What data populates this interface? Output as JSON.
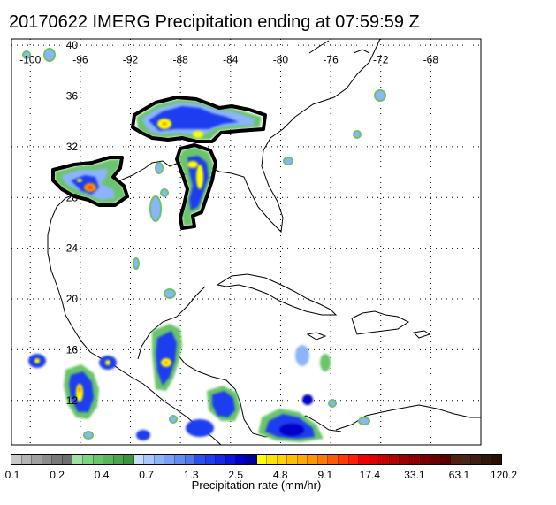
{
  "title": "20170622 IMERG Precipitation ending at 07:59:59 Z",
  "map": {
    "lon_labels": [
      "-100",
      "-96",
      "-92",
      "-88",
      "-84",
      "-80",
      "-76",
      "-72",
      "-68"
    ],
    "lat_labels": [
      "40",
      "36",
      "32",
      "28",
      "24",
      "20",
      "16",
      "12"
    ],
    "lon_range": [
      -101.5,
      -64
    ],
    "lat_range": [
      8.5,
      40.5
    ],
    "grid": true,
    "precip_areas": [
      {
        "name": "tennessee-valley-system",
        "lon": -87.5,
        "lat": 34.5,
        "peak": "9.1",
        "outlined": true
      },
      {
        "name": "gulf-coast-system",
        "lon": -87.0,
        "lat": 30.5,
        "peak": "4.8",
        "outlined": true
      },
      {
        "name": "texas-louisiana-system",
        "lon": -94.5,
        "lat": 29.5,
        "peak": "17.4",
        "outlined": true
      },
      {
        "name": "honduras-storm",
        "lon": -88.5,
        "lat": 15.8,
        "peak": "9.1",
        "outlined": false
      },
      {
        "name": "mexico-pacific-storm",
        "lon": -97.5,
        "lat": 13.5,
        "peak": "9.1",
        "outlined": false
      },
      {
        "name": "south-caribbean-band",
        "lon": -82.5,
        "lat": 10.5,
        "peak": "4.8",
        "outlined": false
      }
    ]
  },
  "colorbar": {
    "title": "Precipitation rate (mm/hr)",
    "tick_labels": [
      "0.1",
      "0.2",
      "0.4",
      "0.7",
      "1.3",
      "2.5",
      "4.8",
      "9.1",
      "17.4",
      "33.1",
      "63.1",
      "120.2"
    ],
    "colors": [
      "#c8c8c8",
      "#b4b4b4",
      "#a0a0a0",
      "#8c8c8c",
      "#787878",
      "#6e6e6e",
      "#9fe29f",
      "#7fd47f",
      "#6ac46a",
      "#5ab45a",
      "#4aa44a",
      "#3a943a",
      "#c8dcff",
      "#a8c8ff",
      "#8cb4fa",
      "#78a0f5",
      "#648cf0",
      "#5078eb",
      "#2850f0",
      "#1e3cf0",
      "#1428e6",
      "#0a14dc",
      "#0000c8",
      "#0000a0",
      "#ffff00",
      "#ffe600",
      "#ffd200",
      "#ffbe00",
      "#ffaa00",
      "#ff9600",
      "#ff7800",
      "#ff5a00",
      "#ff3c00",
      "#ff1e00",
      "#f00000",
      "#dc0000",
      "#c80000",
      "#b40000",
      "#a00000",
      "#8c0000",
      "#7a0000",
      "#6a0000",
      "#5a0000",
      "#502010",
      "#462818",
      "#3c2010",
      "#321808",
      "#281004"
    ]
  }
}
